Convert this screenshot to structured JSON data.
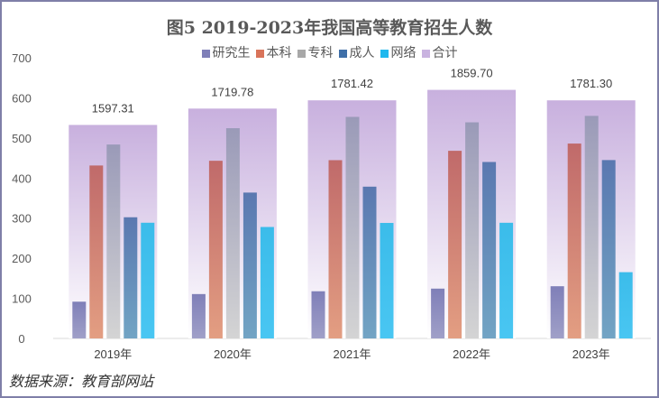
{
  "chart_data": {
    "type": "bar",
    "title": "图5 2019-2023年我国高等教育招生人数",
    "categories": [
      "2019年",
      "2020年",
      "2021年",
      "2022年",
      "2023年"
    ],
    "ylim": [
      0,
      700
    ],
    "yticks": [
      0,
      100,
      200,
      300,
      400,
      500,
      600,
      700
    ],
    "legend_position": "top",
    "series": [
      {
        "name": "研究生",
        "color": "#7f7fb8",
        "values": [
          91.65,
          110.66,
          117.65,
          124.25,
          130.17
        ]
      },
      {
        "name": "本科",
        "color": "#d9745a",
        "values": [
          431.29,
          443.07,
          444.6,
          467.94,
          486.0
        ]
      },
      {
        "name": "专科",
        "color": "#a8a8a8",
        "values": [
          483.61,
          524.34,
          552.58,
          538.98,
          555.07
        ]
      },
      {
        "name": "成人",
        "color": "#3f6fa8",
        "values": [
          302.21,
          363.76,
          378.53,
          440.06,
          444.81
        ]
      },
      {
        "name": "网络",
        "color": "#1fb8ee",
        "values": [
          288.55,
          277.95,
          288.06,
          288.47,
          165.25
        ]
      }
    ],
    "total": {
      "name": "合计",
      "color": "#c9b3e0",
      "values": [
        1597.31,
        1719.78,
        1781.42,
        1859.7,
        1781.3
      ],
      "labels": [
        "1597.31",
        "1719.78",
        "1781.42",
        "1859.70",
        "1781.30"
      ]
    }
  },
  "source": "数据来源：教育部网站"
}
